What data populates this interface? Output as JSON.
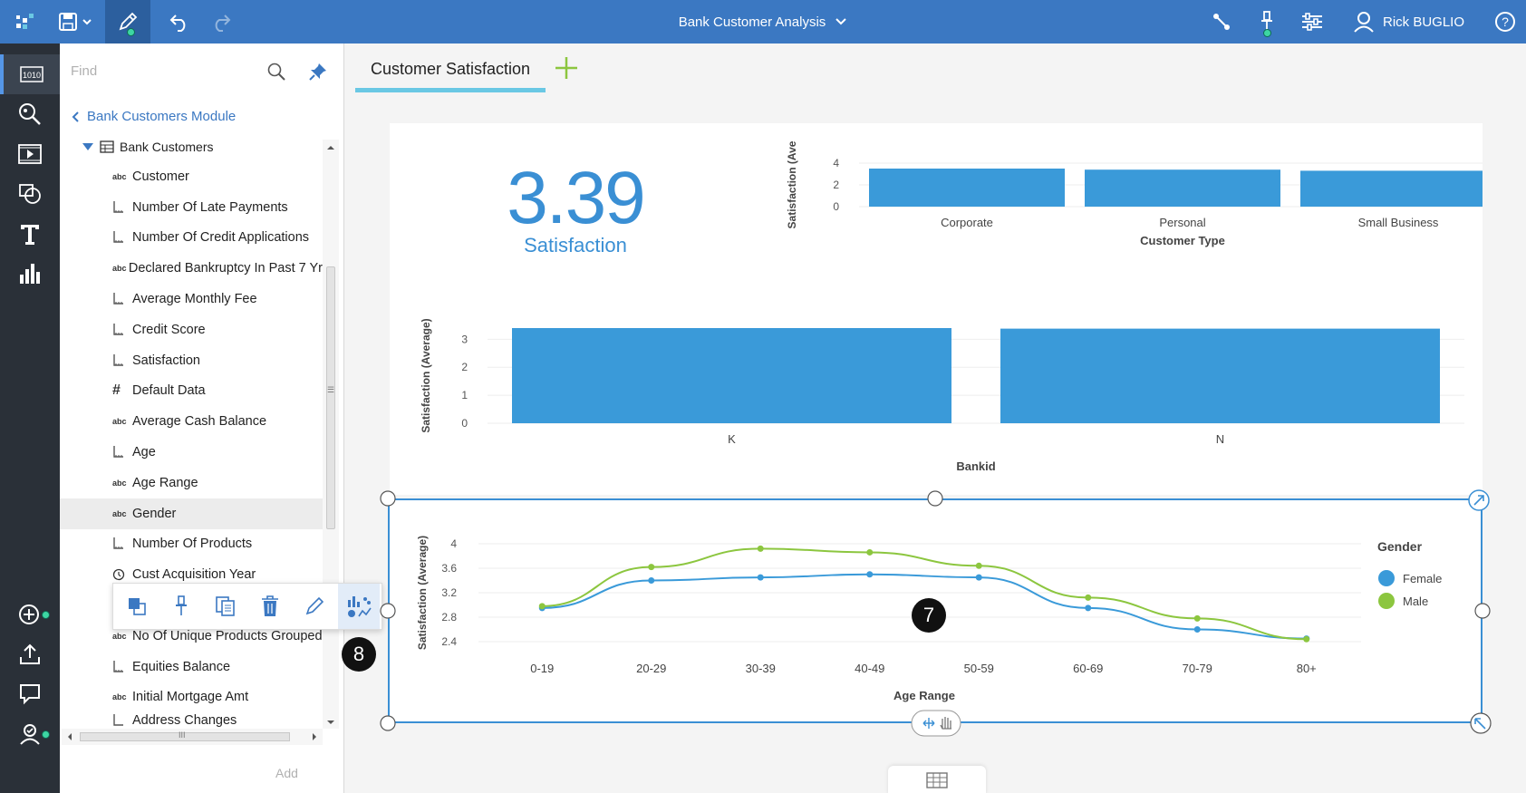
{
  "header": {
    "title": "Bank Customer Analysis",
    "user_name": "Rick BUGLIO",
    "icons": [
      "apps-icon",
      "save-icon",
      "edit-icon",
      "undo-icon",
      "redo-icon",
      "share-icon",
      "pin-icon",
      "settings-icon",
      "user-icon",
      "help-icon"
    ]
  },
  "rail": {
    "icons": [
      "data-icon",
      "explore-icon",
      "media-icon",
      "shapes-icon",
      "text-icon",
      "visualizations-icon",
      "add-icon",
      "upload-icon",
      "comment-icon",
      "assist-icon"
    ]
  },
  "panel": {
    "search_placeholder": "Find",
    "back_label": "Bank Customers Module",
    "root_label": "Bank Customers",
    "items": [
      {
        "label": "Customer",
        "type": "abc"
      },
      {
        "label": "Number Of Late Payments",
        "type": "measure"
      },
      {
        "label": "Number Of Credit Applications",
        "type": "measure"
      },
      {
        "label": "Declared Bankruptcy In Past 7 Yr",
        "type": "abc"
      },
      {
        "label": "Average Monthly Fee",
        "type": "measure"
      },
      {
        "label": "Credit Score",
        "type": "measure"
      },
      {
        "label": "Satisfaction",
        "type": "measure"
      },
      {
        "label": "Default Data",
        "type": "#"
      },
      {
        "label": "Average Cash Balance",
        "type": "abc"
      },
      {
        "label": "Age",
        "type": "measure"
      },
      {
        "label": "Age Range",
        "type": "abc"
      },
      {
        "label": "Gender",
        "type": "abc"
      },
      {
        "label": "Number Of Products",
        "type": "measure"
      },
      {
        "label": "Cust Acquisition Year",
        "type": "time"
      },
      {
        "label": "",
        "type": ""
      },
      {
        "label": "No Of Unique Products Grouped",
        "type": "abc"
      },
      {
        "label": "Equities Balance",
        "type": "measure"
      },
      {
        "label": "Initial Mortgage Amt",
        "type": "abc"
      },
      {
        "label": "Address Changes",
        "type": "measure"
      }
    ],
    "add_label": "Add",
    "hscroll_grip": "III",
    "vscroll_grip": "☰"
  },
  "context_toolbar": {
    "buttons": [
      "bring-to-front-icon",
      "pin-icon",
      "duplicate-icon",
      "delete-icon",
      "edit-title-icon",
      "change-visualization-icon"
    ]
  },
  "callouts": {
    "chart_callout": "7",
    "toolbar_callout": "8"
  },
  "tabs": {
    "active": "Customer Satisfaction"
  },
  "kpi": {
    "value": "3.39",
    "label": "Satisfaction"
  },
  "chart_data": [
    {
      "type": "bar",
      "title": "",
      "categories": [
        "Corporate",
        "Personal",
        "Small Business"
      ],
      "values": [
        3.5,
        3.4,
        3.3
      ],
      "xlabel": "Customer Type",
      "ylabel": "Satisfaction (Ave",
      "ylim": [
        0,
        4
      ],
      "yticks": [
        "0",
        "2",
        "4"
      ]
    },
    {
      "type": "bar",
      "title": "",
      "categories": [
        "K",
        "N"
      ],
      "values": [
        3.4,
        3.38
      ],
      "xlabel": "Bankid",
      "ylabel": "Satisfaction (Average)",
      "ylim": [
        0,
        3.4
      ],
      "yticks": [
        "0",
        "1",
        "2",
        "3"
      ]
    },
    {
      "type": "line",
      "title": "",
      "categories": [
        "0-19",
        "20-29",
        "30-39",
        "40-49",
        "50-59",
        "60-69",
        "70-79",
        "80+"
      ],
      "series": [
        {
          "name": "Female",
          "color": "#3a9ad9",
          "values": [
            2.95,
            3.4,
            3.45,
            3.5,
            3.45,
            2.95,
            2.6,
            2.45
          ]
        },
        {
          "name": "Male",
          "color": "#8cc63f",
          "values": [
            2.98,
            3.62,
            3.92,
            3.86,
            3.64,
            3.12,
            2.78,
            2.44
          ]
        }
      ],
      "xlabel": "Age Range",
      "ylabel": "Satisfaction (Average)",
      "ylim": [
        2.4,
        4
      ],
      "yticks": [
        "2.4",
        "2.8",
        "3.2",
        "3.6",
        "4"
      ],
      "legend_title": "Gender",
      "legend_position": "right"
    }
  ]
}
